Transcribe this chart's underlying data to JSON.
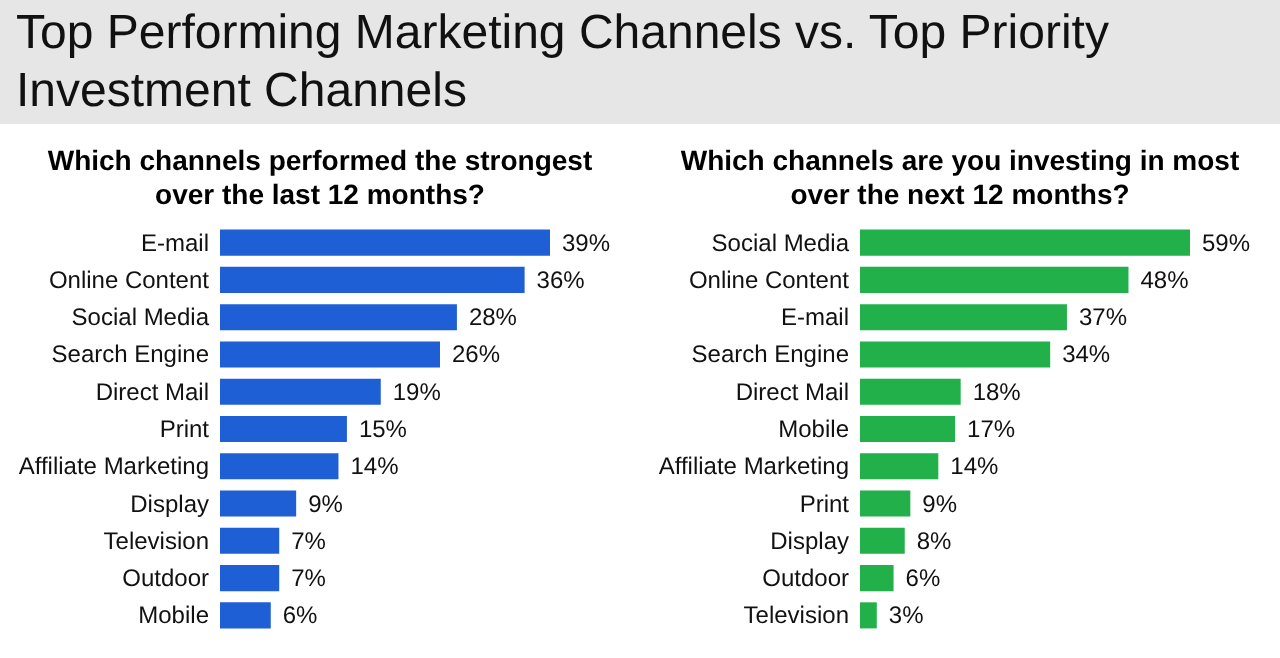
{
  "chart_data": [
    {
      "type": "bar",
      "orientation": "horizontal",
      "title": "Top Performing Marketing Channels vs. Top Priority Investment Channels",
      "subtitle": "Which channels performed the strongest over the last 12 months?",
      "categories": [
        "E-mail",
        "Online Content",
        "Social Media",
        "Search Engine",
        "Direct Mail",
        "Print",
        "Affiliate Marketing",
        "Display",
        "Television",
        "Outdoor",
        "Mobile"
      ],
      "values": [
        39,
        36,
        28,
        26,
        19,
        15,
        14,
        9,
        7,
        7,
        6
      ],
      "value_labels": [
        "39%",
        "36%",
        "28%",
        "26%",
        "19%",
        "15%",
        "14%",
        "9%",
        "7%",
        "7%",
        "6%"
      ],
      "color": "#1f5fd6"
    },
    {
      "type": "bar",
      "orientation": "horizontal",
      "subtitle": "Which channels are you investing in most over the next 12 months?",
      "categories": [
        "Social Media",
        "Online Content",
        "E-mail",
        "Search Engine",
        "Direct Mail",
        "Mobile",
        "Affiliate Marketing",
        "Print",
        "Display",
        "Outdoor",
        "Television"
      ],
      "values": [
        59,
        48,
        37,
        34,
        18,
        17,
        14,
        9,
        8,
        6,
        3
      ],
      "value_labels": [
        "59%",
        "48%",
        "37%",
        "34%",
        "18%",
        "17%",
        "14%",
        "9%",
        "8%",
        "6%",
        "3%"
      ],
      "color": "#22b04a"
    }
  ]
}
